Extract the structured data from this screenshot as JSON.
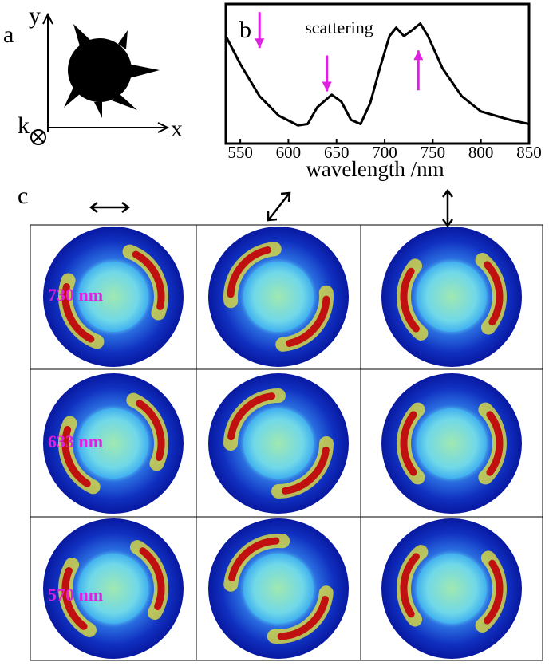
{
  "panel_a": {
    "label": "a",
    "x_axis": "x",
    "y_axis": "y",
    "k_axis": "k"
  },
  "chart_data": {
    "type": "line",
    "label": "b",
    "annotation": "scattering",
    "xlabel": "wavelength /nm",
    "x": [
      535,
      550,
      570,
      590,
      610,
      620,
      630,
      645,
      655,
      665,
      675,
      685,
      695,
      705,
      712,
      720,
      728,
      737,
      745,
      760,
      780,
      800,
      830,
      850
    ],
    "series": [
      {
        "color": "#000000",
        "values": [
          0.77,
          0.57,
          0.34,
          0.2,
          0.13,
          0.14,
          0.26,
          0.35,
          0.3,
          0.17,
          0.14,
          0.29,
          0.54,
          0.77,
          0.83,
          0.77,
          0.81,
          0.86,
          0.77,
          0.54,
          0.34,
          0.23,
          0.17,
          0.14
        ]
      }
    ],
    "xlim": [
      535,
      850
    ],
    "ylim": [
      0,
      1
    ],
    "xticks": [
      550,
      600,
      650,
      700,
      750,
      800,
      850
    ],
    "arrows": [
      570,
      640,
      735
    ],
    "arrow_color": "#e020e0"
  },
  "panel_c": {
    "label": "c",
    "rows": [
      "730 nm",
      "633 nm",
      "570 nm"
    ]
  }
}
